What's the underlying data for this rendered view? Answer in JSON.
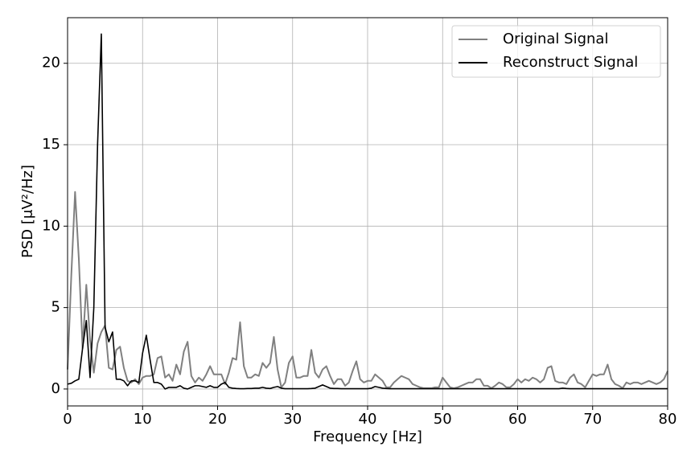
{
  "chart_data": {
    "type": "line",
    "xlabel": "Frequency [Hz]",
    "ylabel": "PSD [μV²/Hz]",
    "x": [
      0,
      0.5,
      1,
      1.5,
      2,
      2.5,
      3,
      3.5,
      4,
      4.5,
      5,
      5.5,
      6,
      6.5,
      7,
      7.5,
      8,
      8.5,
      9,
      9.5,
      10,
      10.5,
      11,
      11.5,
      12,
      12.5,
      13,
      13.5,
      14,
      14.5,
      15,
      15.5,
      16,
      16.5,
      17,
      17.5,
      18,
      18.5,
      19,
      19.5,
      20,
      20.5,
      21,
      21.5,
      22,
      22.5,
      23,
      23.5,
      24,
      24.5,
      25,
      25.5,
      26,
      26.5,
      27,
      27.5,
      28,
      28.5,
      29,
      29.5,
      30,
      30.5,
      31,
      31.5,
      32,
      32.5,
      33,
      33.5,
      34,
      34.5,
      35,
      35.5,
      36,
      36.5,
      37,
      37.5,
      38,
      38.5,
      39,
      39.5,
      40,
      40.5,
      41,
      41.5,
      42,
      42.5,
      43,
      43.5,
      44,
      44.5,
      45,
      45.5,
      46,
      46.5,
      47,
      47.5,
      48,
      48.5,
      49,
      49.5,
      50,
      50.5,
      51,
      51.5,
      52,
      52.5,
      53,
      53.5,
      54,
      54.5,
      55,
      55.5,
      56,
      56.5,
      57,
      57.5,
      58,
      58.5,
      59,
      59.5,
      60,
      60.5,
      61,
      61.5,
      62,
      62.5,
      63,
      63.5,
      64,
      64.5,
      65,
      65.5,
      66,
      66.5,
      67,
      67.5,
      68,
      68.5,
      69,
      69.5,
      70,
      70.5,
      71,
      71.5,
      72,
      72.5,
      73,
      73.5,
      74,
      74.5,
      75,
      75.5,
      76,
      76.5,
      77,
      77.5,
      78,
      78.5,
      79,
      79.5,
      80
    ],
    "series": [
      {
        "name": "Original Signal",
        "color": "#808080",
        "values": [
          1.2,
          7,
          12.1,
          8,
          2.5,
          6.4,
          3,
          1,
          2.8,
          3.5,
          3.9,
          1.3,
          1.2,
          2.4,
          2.6,
          1.3,
          0.5,
          0.4,
          0.6,
          0.3,
          0.7,
          0.8,
          0.8,
          0.9,
          1.9,
          2,
          0.7,
          0.9,
          0.5,
          1.5,
          0.9,
          2.3,
          2.9,
          0.8,
          0.4,
          0.7,
          0.5,
          0.9,
          1.4,
          0.9,
          0.9,
          0.9,
          0.3,
          1,
          1.9,
          1.8,
          4.1,
          1.4,
          0.7,
          0.7,
          0.9,
          0.8,
          1.6,
          1.3,
          1.6,
          3.2,
          1.2,
          0.1,
          0.4,
          1.6,
          2,
          0.7,
          0.7,
          0.8,
          0.8,
          2.4,
          1,
          0.7,
          1.2,
          1.4,
          0.8,
          0.3,
          0.6,
          0.6,
          0.2,
          0.4,
          1.1,
          1.7,
          0.6,
          0.4,
          0.5,
          0.5,
          0.9,
          0.7,
          0.5,
          0.1,
          0.1,
          0.4,
          0.6,
          0.8,
          0.7,
          0.6,
          0.3,
          0.2,
          0.1,
          0.05,
          0.05,
          0.05,
          0.1,
          0.1,
          0.7,
          0.4,
          0.1,
          0.05,
          0.1,
          0.2,
          0.3,
          0.4,
          0.4,
          0.6,
          0.6,
          0.2,
          0.2,
          0.05,
          0.2,
          0.4,
          0.3,
          0.1,
          0.1,
          0.3,
          0.6,
          0.4,
          0.6,
          0.5,
          0.7,
          0.6,
          0.4,
          0.6,
          1.3,
          1.4,
          0.5,
          0.4,
          0.4,
          0.3,
          0.7,
          0.9,
          0.4,
          0.3,
          0.1,
          0.5,
          0.9,
          0.8,
          0.9,
          0.9,
          1.5,
          0.6,
          0.3,
          0.2,
          0.05,
          0.4,
          0.3,
          0.4,
          0.4,
          0.3,
          0.4,
          0.5,
          0.4,
          0.3,
          0.4,
          0.6,
          1.1
        ]
      },
      {
        "name": "Reconstruct Signal",
        "color": "#000000",
        "values": [
          0.3,
          0.35,
          0.5,
          0.6,
          2.5,
          4.2,
          0.7,
          5,
          15,
          21.8,
          3.8,
          2.9,
          3.5,
          0.6,
          0.6,
          0.5,
          0.2,
          0.5,
          0.5,
          0.4,
          2.2,
          3.3,
          1.8,
          0.4,
          0.4,
          0.3,
          0,
          0.1,
          0.1,
          0.1,
          0.2,
          0.05,
          0,
          0.1,
          0.2,
          0.2,
          0.15,
          0.1,
          0.2,
          0.1,
          0.1,
          0.3,
          0.4,
          0.1,
          0.05,
          0.03,
          0.02,
          0.02,
          0.03,
          0.03,
          0.05,
          0.05,
          0.1,
          0.05,
          0.03,
          0.1,
          0.15,
          0.05,
          0.02,
          0.02,
          0.02,
          0.02,
          0.02,
          0.02,
          0.02,
          0.03,
          0.05,
          0.15,
          0.25,
          0.15,
          0.05,
          0.03,
          0.03,
          0.02,
          0.02,
          0.02,
          0.02,
          0.02,
          0.02,
          0.02,
          0.02,
          0.05,
          0.15,
          0.1,
          0.05,
          0.03,
          0.02,
          0.02,
          0.02,
          0.02,
          0.02,
          0.02,
          0.02,
          0.02,
          0.02,
          0.02,
          0.02,
          0.02,
          0.02,
          0.02,
          0.02,
          0.02,
          0.02,
          0.02,
          0.02,
          0.02,
          0.02,
          0.02,
          0.02,
          0.02,
          0.02,
          0.02,
          0.02,
          0.02,
          0.02,
          0.02,
          0.02,
          0.02,
          0.02,
          0.02,
          0.02,
          0.02,
          0.02,
          0.02,
          0.02,
          0.02,
          0.02,
          0.02,
          0.02,
          0.02,
          0.02,
          0.02,
          0.05,
          0.03,
          0.02,
          0.02,
          0.02,
          0.02,
          0.02,
          0.02,
          0.02,
          0.02,
          0.02,
          0.02,
          0.02,
          0.02,
          0.02,
          0.02,
          0.02,
          0.02,
          0.02,
          0.02,
          0.02,
          0.02,
          0.02,
          0.02,
          0.02,
          0.02,
          0.02,
          0.02,
          0.02
        ]
      }
    ],
    "xlim": [
      0,
      80
    ],
    "xticks": [
      0,
      10,
      20,
      30,
      40,
      50,
      60,
      70,
      80
    ],
    "ylim": [
      -1.04,
      22.8
    ],
    "yticks": [
      0,
      5,
      10,
      15,
      20
    ],
    "grid": true,
    "legend": "upper right"
  }
}
